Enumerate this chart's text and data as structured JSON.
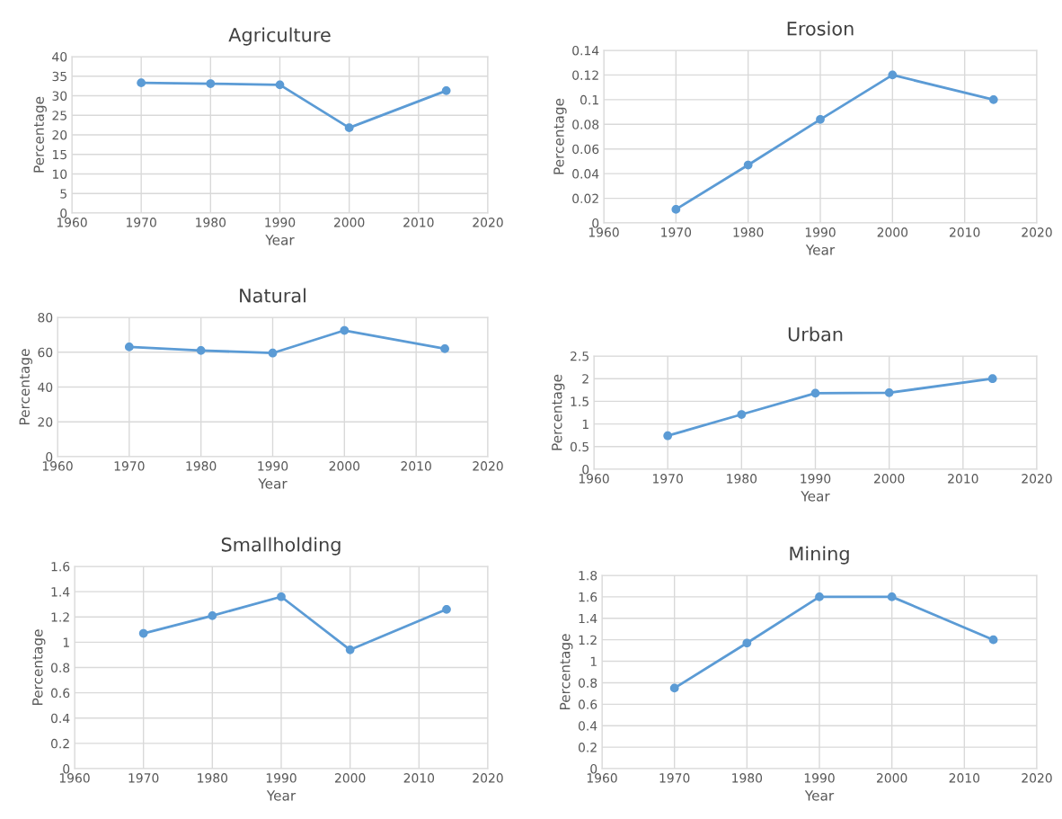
{
  "chart_data": [
    {
      "type": "line",
      "title": "Agriculture",
      "xlabel": "Year",
      "ylabel": "Percentage",
      "x": [
        1970,
        1980,
        1990,
        2000,
        2014
      ],
      "series": [
        {
          "color": "#5b9bd5",
          "values": [
            33.3,
            33.1,
            32.8,
            21.8,
            31.3
          ]
        }
      ],
      "xlim": [
        1960,
        2020
      ],
      "xticks": [
        1960,
        1970,
        1980,
        1990,
        2000,
        2010,
        2020
      ],
      "ylim": [
        0,
        40
      ],
      "yticks": [
        0,
        5,
        10,
        15,
        20,
        25,
        30,
        35,
        40
      ],
      "grid": true,
      "marker": "circle",
      "line_style": "solid"
    },
    {
      "type": "line",
      "title": "Erosion",
      "xlabel": "Year",
      "ylabel": "Percentage",
      "x": [
        1970,
        1980,
        1990,
        2000,
        2014
      ],
      "series": [
        {
          "color": "#5b9bd5",
          "values": [
            0.011,
            0.047,
            0.084,
            0.12,
            0.1
          ]
        }
      ],
      "xlim": [
        1960,
        2020
      ],
      "xticks": [
        1960,
        1970,
        1980,
        1990,
        2000,
        2010,
        2020
      ],
      "ylim": [
        0,
        0.14
      ],
      "yticks": [
        0,
        0.02,
        0.04,
        0.06,
        0.08,
        0.1,
        0.12,
        0.14
      ],
      "grid": true,
      "marker": "circle",
      "line_style": "solid"
    },
    {
      "type": "line",
      "title": "Natural",
      "xlabel": "Year",
      "ylabel": "Percentage",
      "x": [
        1970,
        1980,
        1990,
        2000,
        2014
      ],
      "series": [
        {
          "color": "#5b9bd5",
          "values": [
            63,
            61,
            59.5,
            72.5,
            62
          ]
        }
      ],
      "xlim": [
        1960,
        2020
      ],
      "xticks": [
        1960,
        1970,
        1980,
        1990,
        2000,
        2010,
        2020
      ],
      "ylim": [
        0,
        80
      ],
      "yticks": [
        0,
        20,
        40,
        60,
        80
      ],
      "grid": true,
      "marker": "circle",
      "line_style": "solid"
    },
    {
      "type": "line",
      "title": "Urban",
      "xlabel": "Year",
      "ylabel": "Percentage",
      "x": [
        1970,
        1980,
        1990,
        2000,
        2014
      ],
      "series": [
        {
          "color": "#5b9bd5",
          "values": [
            0.74,
            1.21,
            1.68,
            1.69,
            2.0
          ]
        }
      ],
      "xlim": [
        1960,
        2020
      ],
      "xticks": [
        1960,
        1970,
        1980,
        1990,
        2000,
        2010,
        2020
      ],
      "ylim": [
        0,
        2.5
      ],
      "yticks": [
        0,
        0.5,
        1,
        1.5,
        2,
        2.5
      ],
      "grid": true,
      "marker": "circle",
      "line_style": "solid"
    },
    {
      "type": "line",
      "title": "Smallholding",
      "xlabel": "Year",
      "ylabel": "Percentage",
      "x": [
        1970,
        1980,
        1990,
        2000,
        2014
      ],
      "series": [
        {
          "color": "#5b9bd5",
          "values": [
            1.07,
            1.21,
            1.36,
            0.94,
            1.26
          ]
        }
      ],
      "xlim": [
        1960,
        2020
      ],
      "xticks": [
        1960,
        1970,
        1980,
        1990,
        2000,
        2010,
        2020
      ],
      "ylim": [
        0,
        1.6
      ],
      "yticks": [
        0,
        0.2,
        0.4,
        0.6,
        0.8,
        1,
        1.2,
        1.4,
        1.6
      ],
      "grid": true,
      "marker": "circle",
      "line_style": "solid"
    },
    {
      "type": "line",
      "title": "Mining",
      "xlabel": "Year",
      "ylabel": "Percentage",
      "x": [
        1970,
        1980,
        1990,
        2000,
        2014
      ],
      "series": [
        {
          "color": "#5b9bd5",
          "values": [
            0.75,
            1.17,
            1.6,
            1.6,
            1.2
          ]
        }
      ],
      "xlim": [
        1960,
        2020
      ],
      "xticks": [
        1960,
        1970,
        1980,
        1990,
        2000,
        2010,
        2020
      ],
      "ylim": [
        0,
        1.8
      ],
      "yticks": [
        0,
        0.2,
        0.4,
        0.6,
        0.8,
        1,
        1.2,
        1.4,
        1.6,
        1.8
      ],
      "grid": true,
      "marker": "circle",
      "line_style": "solid"
    }
  ]
}
